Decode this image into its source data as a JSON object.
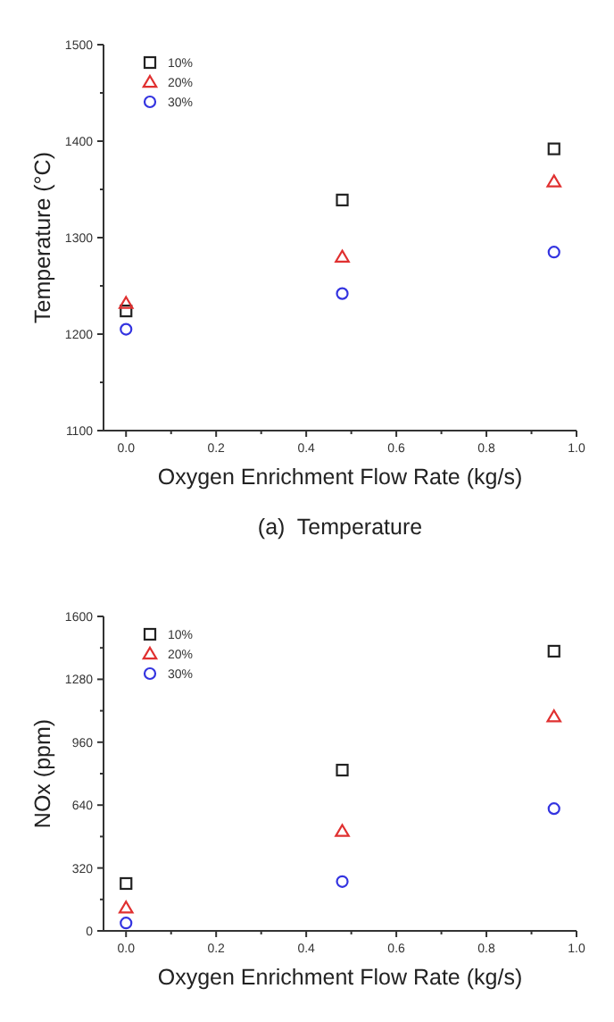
{
  "chart_data": [
    {
      "type": "scatter",
      "title": "(a)  Temperature",
      "xlabel": "Oxygen Enrichment Flow Rate (kg/s)",
      "ylabel": "Temperature (°C)",
      "x": [
        0,
        0.48,
        0.95
      ],
      "xlim": [
        -0.05,
        1.0
      ],
      "ylim": [
        1100,
        1500
      ],
      "xticks": [
        {
          "value": 0,
          "label": "0.0"
        },
        {
          "value": 0.1,
          "label": null
        },
        {
          "value": 0.2,
          "label": "0.2"
        },
        {
          "value": 0.3,
          "label": null
        },
        {
          "value": 0.4,
          "label": "0.4"
        },
        {
          "value": 0.5,
          "label": null
        },
        {
          "value": 0.6,
          "label": "0.6"
        },
        {
          "value": 0.7,
          "label": null
        },
        {
          "value": 0.8,
          "label": "0.8"
        },
        {
          "value": 0.9,
          "label": null
        },
        {
          "value": 1,
          "label": "1.0"
        }
      ],
      "yticks": [
        1100,
        {
          "value": 1150,
          "label": null
        },
        1200,
        {
          "value": 1250,
          "label": null
        },
        1300,
        {
          "value": 1350,
          "label": null
        },
        1400,
        {
          "value": 1450,
          "label": null
        },
        1500
      ],
      "legend": "top left",
      "grid": false,
      "series": [
        {
          "name": "10%",
          "color": "#222222",
          "marker": "square",
          "values": [
            1224,
            1339,
            1392
          ]
        },
        {
          "name": "20%",
          "color": "#e03030",
          "marker": "triangle",
          "values": [
            1232,
            1280,
            1358
          ]
        },
        {
          "name": "30%",
          "color": "#3333e0",
          "marker": "circle",
          "values": [
            1205,
            1242,
            1285
          ]
        }
      ]
    },
    {
      "type": "scatter",
      "xlabel": "Oxygen Enrichment Flow Rate (kg/s)",
      "ylabel": "NOx (ppm)",
      "x": [
        0,
        0.48,
        0.95
      ],
      "xlim": [
        -0.05,
        1.0
      ],
      "ylim": [
        0,
        1600
      ],
      "xticks": [
        {
          "value": 0,
          "label": "0.0"
        },
        {
          "value": 0.1,
          "label": null
        },
        {
          "value": 0.2,
          "label": "0.2"
        },
        {
          "value": 0.3,
          "label": null
        },
        {
          "value": 0.4,
          "label": "0.4"
        },
        {
          "value": 0.5,
          "label": null
        },
        {
          "value": 0.6,
          "label": "0.6"
        },
        {
          "value": 0.7,
          "label": null
        },
        {
          "value": 0.8,
          "label": "0.8"
        },
        {
          "value": 0.9,
          "label": null
        },
        {
          "value": 1,
          "label": "1.0"
        }
      ],
      "yticks": [
        0,
        {
          "value": 160,
          "label": null
        },
        320,
        {
          "value": 480,
          "label": null
        },
        640,
        {
          "value": 800,
          "label": null
        },
        960,
        {
          "value": 1120,
          "label": null
        },
        1280,
        {
          "value": 1440,
          "label": null
        },
        1600
      ],
      "legend": "top left",
      "grid": false,
      "series": [
        {
          "name": "10%",
          "color": "#222222",
          "marker": "square",
          "values": [
            241,
            818,
            1423
          ]
        },
        {
          "name": "20%",
          "color": "#e03030",
          "marker": "triangle",
          "values": [
            117,
            507,
            1090
          ]
        },
        {
          "name": "30%",
          "color": "#3333e0",
          "marker": "circle",
          "values": [
            40,
            251,
            622
          ]
        }
      ]
    }
  ]
}
